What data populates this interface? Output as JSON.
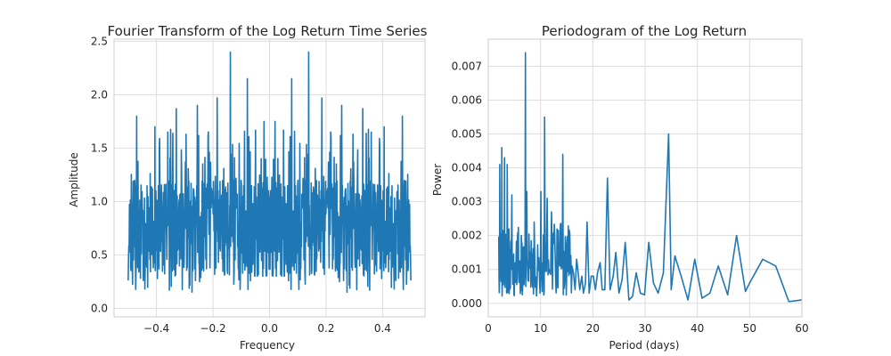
{
  "chart_data": [
    {
      "type": "line",
      "title": "Fourier Transform of the Log Return Time Series",
      "xlabel": "Frequency",
      "ylabel": "Amplitude",
      "xlim": [
        -0.55,
        0.55
      ],
      "ylim": [
        -0.08,
        2.52
      ],
      "xticks": [
        -0.4,
        -0.2,
        0.0,
        0.2,
        0.4
      ],
      "xtick_labels": [
        "−0.4",
        "−0.2",
        "0.0",
        "0.2",
        "0.4"
      ],
      "yticks": [
        0.0,
        0.5,
        1.0,
        1.5,
        2.0,
        2.5
      ],
      "ytick_labels": [
        "0.0",
        "0.5",
        "1.0",
        "1.5",
        "2.0",
        "2.5"
      ],
      "grid": true,
      "legend": "none",
      "color": "#1f77b4",
      "series": [
        {
          "values_note": "dense noisy amplitude spectrum, symmetric about 0",
          "x_range": [
            -0.5,
            0.5
          ],
          "num_points": 900,
          "baseline_range": [
            0.3,
            1.2
          ],
          "peaks": [
            {
              "x": -0.138,
              "y": 2.4
            },
            {
              "x": 0.138,
              "y": 2.4
            },
            {
              "x": -0.078,
              "y": 2.15
            },
            {
              "x": 0.078,
              "y": 2.15
            },
            {
              "x": -0.185,
              "y": 1.97
            },
            {
              "x": 0.185,
              "y": 1.97
            },
            {
              "x": -0.255,
              "y": 1.9
            },
            {
              "x": 0.255,
              "y": 1.9
            },
            {
              "x": -0.33,
              "y": 1.87
            },
            {
              "x": 0.33,
              "y": 1.87
            },
            {
              "x": -0.405,
              "y": 1.7
            },
            {
              "x": 0.405,
              "y": 1.7
            },
            {
              "x": -0.47,
              "y": 1.8
            },
            {
              "x": 0.47,
              "y": 1.8
            },
            {
              "x": -0.36,
              "y": 1.65
            },
            {
              "x": 0.36,
              "y": 1.65
            },
            {
              "x": -0.02,
              "y": 1.75
            },
            {
              "x": 0.02,
              "y": 1.75
            }
          ]
        }
      ]
    },
    {
      "type": "line",
      "title": "Periodogram of the Log Return",
      "xlabel": "Period (days)",
      "ylabel": "Power",
      "xlim": [
        0,
        60
      ],
      "ylim": [
        -0.0004,
        0.0078
      ],
      "xticks": [
        0,
        10,
        20,
        30,
        40,
        50,
        60
      ],
      "xtick_labels": [
        "0",
        "10",
        "20",
        "30",
        "40",
        "50",
        "60"
      ],
      "yticks": [
        0.0,
        0.001,
        0.002,
        0.003,
        0.004,
        0.005,
        0.006,
        0.007
      ],
      "ytick_labels": [
        "0.000",
        "0.001",
        "0.002",
        "0.003",
        "0.004",
        "0.005",
        "0.006",
        "0.007"
      ],
      "grid": true,
      "legend": "none",
      "color": "#1f77b4",
      "series": [
        {
          "x": [
            60,
            57.5,
            55,
            52.5,
            50,
            49.2,
            47.5,
            45.8,
            44,
            42.4,
            40.9,
            39.5,
            38.2,
            36.9,
            35.7,
            35.0,
            34.5,
            33.5,
            32.5,
            31.6,
            30.7,
            29.9,
            29.1,
            28.3,
            27.6,
            26.9,
            26.2,
            25.6,
            25,
            24.4,
            23.9,
            23.3,
            22.8,
            22.3,
            21.8,
            21.4,
            20.9,
            20.5,
            20.1,
            19.7,
            19.3,
            18.9,
            18.6,
            18.2,
            17.9,
            17.5,
            17.2,
            16.9,
            16.6,
            16.3,
            16.0
          ],
          "y": [
            0.0001,
            5e-05,
            0.0011,
            0.0013,
            0.0006,
            0.00035,
            0.002,
            0.00025,
            0.0011,
            0.0003,
            0.00015,
            0.0013,
            0.0001,
            0.0008,
            0.0014,
            0.0004,
            0.005,
            0.0009,
            0.0003,
            0.0006,
            0.0018,
            0.00025,
            0.0003,
            0.0009,
            0.0002,
            0.0001,
            0.0018,
            0.0007,
            0.0003,
            0.0015,
            0.0008,
            0.0004,
            0.0037,
            0.0004,
            0.0004,
            0.0012,
            0.0009,
            0.0004,
            0.0008,
            0.0008,
            0.0003,
            0.0024,
            0.0006,
            0.0003,
            0.0008,
            0.0004,
            0.0009,
            0.0013,
            0.0004,
            0.0009,
            0.0011
          ],
          "dense_region_note": "noisy cluster for periods 2–16 days",
          "dense_x_range": [
            2.0,
            16.0
          ],
          "dense_peaks": [
            {
              "x": 7.1,
              "y": 0.0074
            },
            {
              "x": 2.6,
              "y": 0.0046
            },
            {
              "x": 3.1,
              "y": 0.0043
            },
            {
              "x": 2.2,
              "y": 0.0041
            },
            {
              "x": 3.6,
              "y": 0.0041
            },
            {
              "x": 10.8,
              "y": 0.0055
            },
            {
              "x": 14.3,
              "y": 0.0044
            },
            {
              "x": 7.4,
              "y": 0.0033
            },
            {
              "x": 4.5,
              "y": 0.0032
            },
            {
              "x": 11.3,
              "y": 0.0031
            },
            {
              "x": 12.1,
              "y": 0.0027
            },
            {
              "x": 8.8,
              "y": 0.0024
            },
            {
              "x": 10.1,
              "y": 0.0033
            }
          ]
        }
      ]
    }
  ]
}
